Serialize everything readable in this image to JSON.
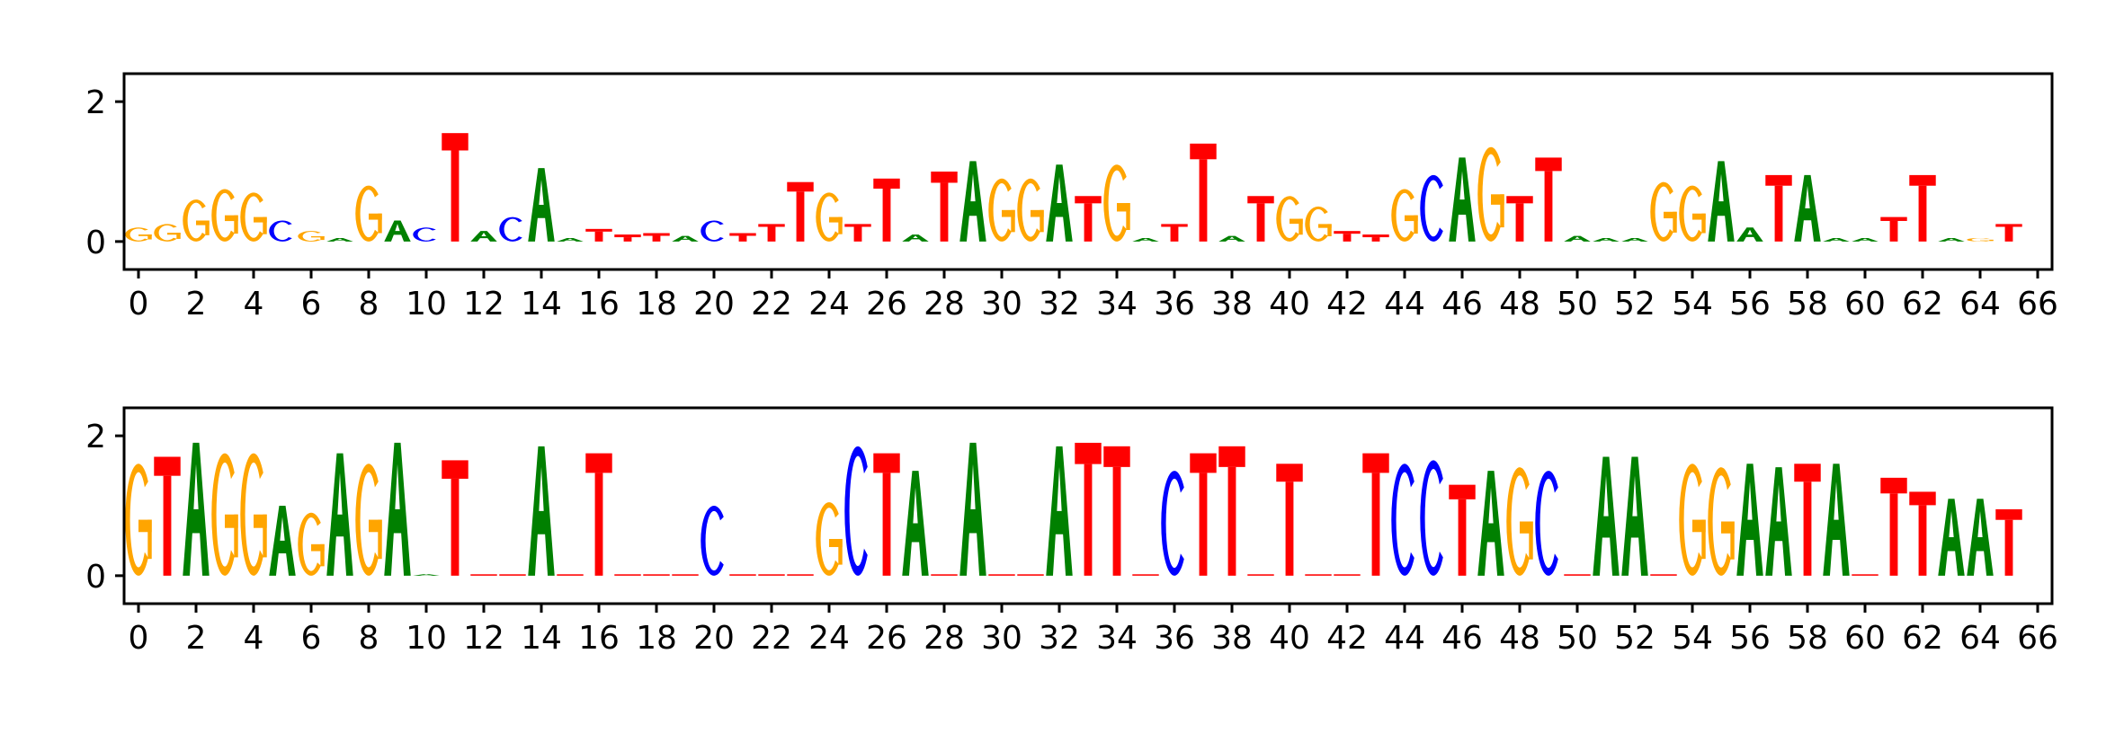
{
  "colors": {
    "A": "#008000",
    "C": "#0000ff",
    "G": "#ffa500",
    "T": "#ff0000"
  },
  "chart_data": [
    {
      "type": "sequence-logo",
      "title": "",
      "xlabel": "",
      "ylabel": "",
      "xlim": [
        -0.5,
        66.5
      ],
      "ylim": [
        -0.4,
        2.4
      ],
      "x_ticks": [
        0,
        2,
        4,
        6,
        8,
        10,
        12,
        14,
        16,
        18,
        20,
        22,
        24,
        26,
        28,
        30,
        32,
        34,
        36,
        38,
        40,
        42,
        44,
        46,
        48,
        50,
        52,
        54,
        56,
        58,
        60,
        62,
        64,
        66
      ],
      "y_ticks": [
        0,
        2
      ],
      "grid": false,
      "legend": "none",
      "positions": [
        {
          "x": 0,
          "letter": "G",
          "height": 0.2
        },
        {
          "x": 1,
          "letter": "G",
          "height": 0.25
        },
        {
          "x": 2,
          "letter": "G",
          "height": 0.6
        },
        {
          "x": 3,
          "letter": "G",
          "height": 0.75
        },
        {
          "x": 4,
          "letter": "G",
          "height": 0.7
        },
        {
          "x": 5,
          "letter": "C",
          "height": 0.3
        },
        {
          "x": 6,
          "letter": "G",
          "height": 0.15
        },
        {
          "x": 7,
          "letter": "A",
          "height": 0.05
        },
        {
          "x": 8,
          "letter": "G",
          "height": 0.8
        },
        {
          "x": 9,
          "letter": "A",
          "height": 0.3
        },
        {
          "x": 10,
          "letter": "C",
          "height": 0.2
        },
        {
          "x": 11,
          "letter": "T",
          "height": 1.55
        },
        {
          "x": 12,
          "letter": "A",
          "height": 0.15
        },
        {
          "x": 13,
          "letter": "C",
          "height": 0.35
        },
        {
          "x": 14,
          "letter": "A",
          "height": 1.05
        },
        {
          "x": 15,
          "letter": "A",
          "height": 0.05
        },
        {
          "x": 16,
          "letter": "T",
          "height": 0.18
        },
        {
          "x": 17,
          "letter": "T",
          "height": 0.1
        },
        {
          "x": 18,
          "letter": "T",
          "height": 0.12
        },
        {
          "x": 19,
          "letter": "A",
          "height": 0.08
        },
        {
          "x": 20,
          "letter": "C",
          "height": 0.3
        },
        {
          "x": 21,
          "letter": "T",
          "height": 0.12
        },
        {
          "x": 22,
          "letter": "T",
          "height": 0.25
        },
        {
          "x": 23,
          "letter": "T",
          "height": 0.85
        },
        {
          "x": 24,
          "letter": "G",
          "height": 0.7
        },
        {
          "x": 25,
          "letter": "T",
          "height": 0.25
        },
        {
          "x": 26,
          "letter": "T",
          "height": 0.9
        },
        {
          "x": 27,
          "letter": "A",
          "height": 0.1
        },
        {
          "x": 28,
          "letter": "T",
          "height": 1.0
        },
        {
          "x": 29,
          "letter": "A",
          "height": 1.15
        },
        {
          "x": 30,
          "letter": "G",
          "height": 0.9
        },
        {
          "x": 31,
          "letter": "G",
          "height": 0.9
        },
        {
          "x": 32,
          "letter": "A",
          "height": 1.1
        },
        {
          "x": 33,
          "letter": "T",
          "height": 0.65
        },
        {
          "x": 34,
          "letter": "G",
          "height": 1.1
        },
        {
          "x": 35,
          "letter": "A",
          "height": 0.05
        },
        {
          "x": 36,
          "letter": "T",
          "height": 0.25
        },
        {
          "x": 37,
          "letter": "T",
          "height": 1.4
        },
        {
          "x": 38,
          "letter": "A",
          "height": 0.08
        },
        {
          "x": 39,
          "letter": "T",
          "height": 0.65
        },
        {
          "x": 40,
          "letter": "G",
          "height": 0.65
        },
        {
          "x": 41,
          "letter": "G",
          "height": 0.5
        },
        {
          "x": 42,
          "letter": "T",
          "height": 0.15
        },
        {
          "x": 43,
          "letter": "T",
          "height": 0.1
        },
        {
          "x": 44,
          "letter": "G",
          "height": 0.75
        },
        {
          "x": 45,
          "letter": "C",
          "height": 0.95
        },
        {
          "x": 46,
          "letter": "A",
          "height": 1.2
        },
        {
          "x": 47,
          "letter": "G",
          "height": 1.35
        },
        {
          "x": 48,
          "letter": "T",
          "height": 0.65
        },
        {
          "x": 49,
          "letter": "T",
          "height": 1.2
        },
        {
          "x": 50,
          "letter": "A",
          "height": 0.08
        },
        {
          "x": 51,
          "letter": "A",
          "height": 0.05
        },
        {
          "x": 52,
          "letter": "A",
          "height": 0.05
        },
        {
          "x": 53,
          "letter": "G",
          "height": 0.85
        },
        {
          "x": 54,
          "letter": "G",
          "height": 0.8
        },
        {
          "x": 55,
          "letter": "A",
          "height": 1.15
        },
        {
          "x": 56,
          "letter": "A",
          "height": 0.2
        },
        {
          "x": 57,
          "letter": "T",
          "height": 0.95
        },
        {
          "x": 58,
          "letter": "A",
          "height": 0.95
        },
        {
          "x": 59,
          "letter": "A",
          "height": 0.05
        },
        {
          "x": 60,
          "letter": "A",
          "height": 0.05
        },
        {
          "x": 61,
          "letter": "T",
          "height": 0.35
        },
        {
          "x": 62,
          "letter": "T",
          "height": 0.95
        },
        {
          "x": 63,
          "letter": "A",
          "height": 0.05
        },
        {
          "x": 64,
          "letter": "G",
          "height": 0.05
        },
        {
          "x": 65,
          "letter": "T",
          "height": 0.25
        }
      ]
    },
    {
      "type": "sequence-logo",
      "title": "",
      "xlabel": "",
      "ylabel": "",
      "xlim": [
        -0.5,
        66.5
      ],
      "ylim": [
        -0.4,
        2.4
      ],
      "x_ticks": [
        0,
        2,
        4,
        6,
        8,
        10,
        12,
        14,
        16,
        18,
        20,
        22,
        24,
        26,
        28,
        30,
        32,
        34,
        36,
        38,
        40,
        42,
        44,
        46,
        48,
        50,
        52,
        54,
        56,
        58,
        60,
        62,
        64,
        66
      ],
      "y_ticks": [
        0,
        2
      ],
      "grid": false,
      "legend": "none",
      "positions": [
        {
          "x": 0,
          "letter": "G",
          "height": 1.6
        },
        {
          "x": 1,
          "letter": "T",
          "height": 1.7
        },
        {
          "x": 2,
          "letter": "A",
          "height": 1.9
        },
        {
          "x": 3,
          "letter": "G",
          "height": 1.75
        },
        {
          "x": 4,
          "letter": "G",
          "height": 1.75
        },
        {
          "x": 5,
          "letter": "A",
          "height": 1.0
        },
        {
          "x": 6,
          "letter": "G",
          "height": 0.9
        },
        {
          "x": 7,
          "letter": "A",
          "height": 1.75
        },
        {
          "x": 8,
          "letter": "G",
          "height": 1.6
        },
        {
          "x": 9,
          "letter": "A",
          "height": 1.9
        },
        {
          "x": 10,
          "letter": "A",
          "height": 0.02
        },
        {
          "x": 11,
          "letter": "T",
          "height": 1.65
        },
        {
          "x": 12,
          "letter": "T",
          "height": 0.02
        },
        {
          "x": 13,
          "letter": "T",
          "height": 0.02
        },
        {
          "x": 14,
          "letter": "A",
          "height": 1.85
        },
        {
          "x": 15,
          "letter": "T",
          "height": 0.02
        },
        {
          "x": 16,
          "letter": "T",
          "height": 1.75
        },
        {
          "x": 17,
          "letter": "T",
          "height": 0.02
        },
        {
          "x": 18,
          "letter": "T",
          "height": 0.02
        },
        {
          "x": 19,
          "letter": "T",
          "height": 0.02
        },
        {
          "x": 20,
          "letter": "C",
          "height": 1.0
        },
        {
          "x": 21,
          "letter": "T",
          "height": 0.02
        },
        {
          "x": 22,
          "letter": "T",
          "height": 0.02
        },
        {
          "x": 23,
          "letter": "T",
          "height": 0.02
        },
        {
          "x": 24,
          "letter": "G",
          "height": 1.05
        },
        {
          "x": 25,
          "letter": "C",
          "height": 1.85
        },
        {
          "x": 26,
          "letter": "T",
          "height": 1.75
        },
        {
          "x": 27,
          "letter": "A",
          "height": 1.5
        },
        {
          "x": 28,
          "letter": "T",
          "height": 0.02
        },
        {
          "x": 29,
          "letter": "A",
          "height": 1.9
        },
        {
          "x": 30,
          "letter": "T",
          "height": 0.02
        },
        {
          "x": 31,
          "letter": "T",
          "height": 0.02
        },
        {
          "x": 32,
          "letter": "A",
          "height": 1.85
        },
        {
          "x": 33,
          "letter": "T",
          "height": 1.9
        },
        {
          "x": 34,
          "letter": "T",
          "height": 1.85
        },
        {
          "x": 35,
          "letter": "T",
          "height": 0.02
        },
        {
          "x": 36,
          "letter": "C",
          "height": 1.5
        },
        {
          "x": 37,
          "letter": "T",
          "height": 1.75
        },
        {
          "x": 38,
          "letter": "T",
          "height": 1.85
        },
        {
          "x": 39,
          "letter": "T",
          "height": 0.02
        },
        {
          "x": 40,
          "letter": "T",
          "height": 1.6
        },
        {
          "x": 41,
          "letter": "T",
          "height": 0.02
        },
        {
          "x": 42,
          "letter": "T",
          "height": 0.02
        },
        {
          "x": 43,
          "letter": "T",
          "height": 1.75
        },
        {
          "x": 44,
          "letter": "C",
          "height": 1.6
        },
        {
          "x": 45,
          "letter": "C",
          "height": 1.65
        },
        {
          "x": 46,
          "letter": "T",
          "height": 1.3
        },
        {
          "x": 47,
          "letter": "A",
          "height": 1.5
        },
        {
          "x": 48,
          "letter": "G",
          "height": 1.55
        },
        {
          "x": 49,
          "letter": "C",
          "height": 1.5
        },
        {
          "x": 50,
          "letter": "T",
          "height": 0.02
        },
        {
          "x": 51,
          "letter": "A",
          "height": 1.7
        },
        {
          "x": 52,
          "letter": "A",
          "height": 1.7
        },
        {
          "x": 53,
          "letter": "T",
          "height": 0.02
        },
        {
          "x": 54,
          "letter": "G",
          "height": 1.6
        },
        {
          "x": 55,
          "letter": "G",
          "height": 1.55
        },
        {
          "x": 56,
          "letter": "A",
          "height": 1.6
        },
        {
          "x": 57,
          "letter": "A",
          "height": 1.55
        },
        {
          "x": 58,
          "letter": "T",
          "height": 1.6
        },
        {
          "x": 59,
          "letter": "A",
          "height": 1.6
        },
        {
          "x": 60,
          "letter": "T",
          "height": 0.02
        },
        {
          "x": 61,
          "letter": "T",
          "height": 1.4
        },
        {
          "x": 62,
          "letter": "T",
          "height": 1.2
        },
        {
          "x": 63,
          "letter": "A",
          "height": 1.1
        },
        {
          "x": 64,
          "letter": "A",
          "height": 1.1
        },
        {
          "x": 65,
          "letter": "T",
          "height": 0.95
        }
      ]
    }
  ]
}
